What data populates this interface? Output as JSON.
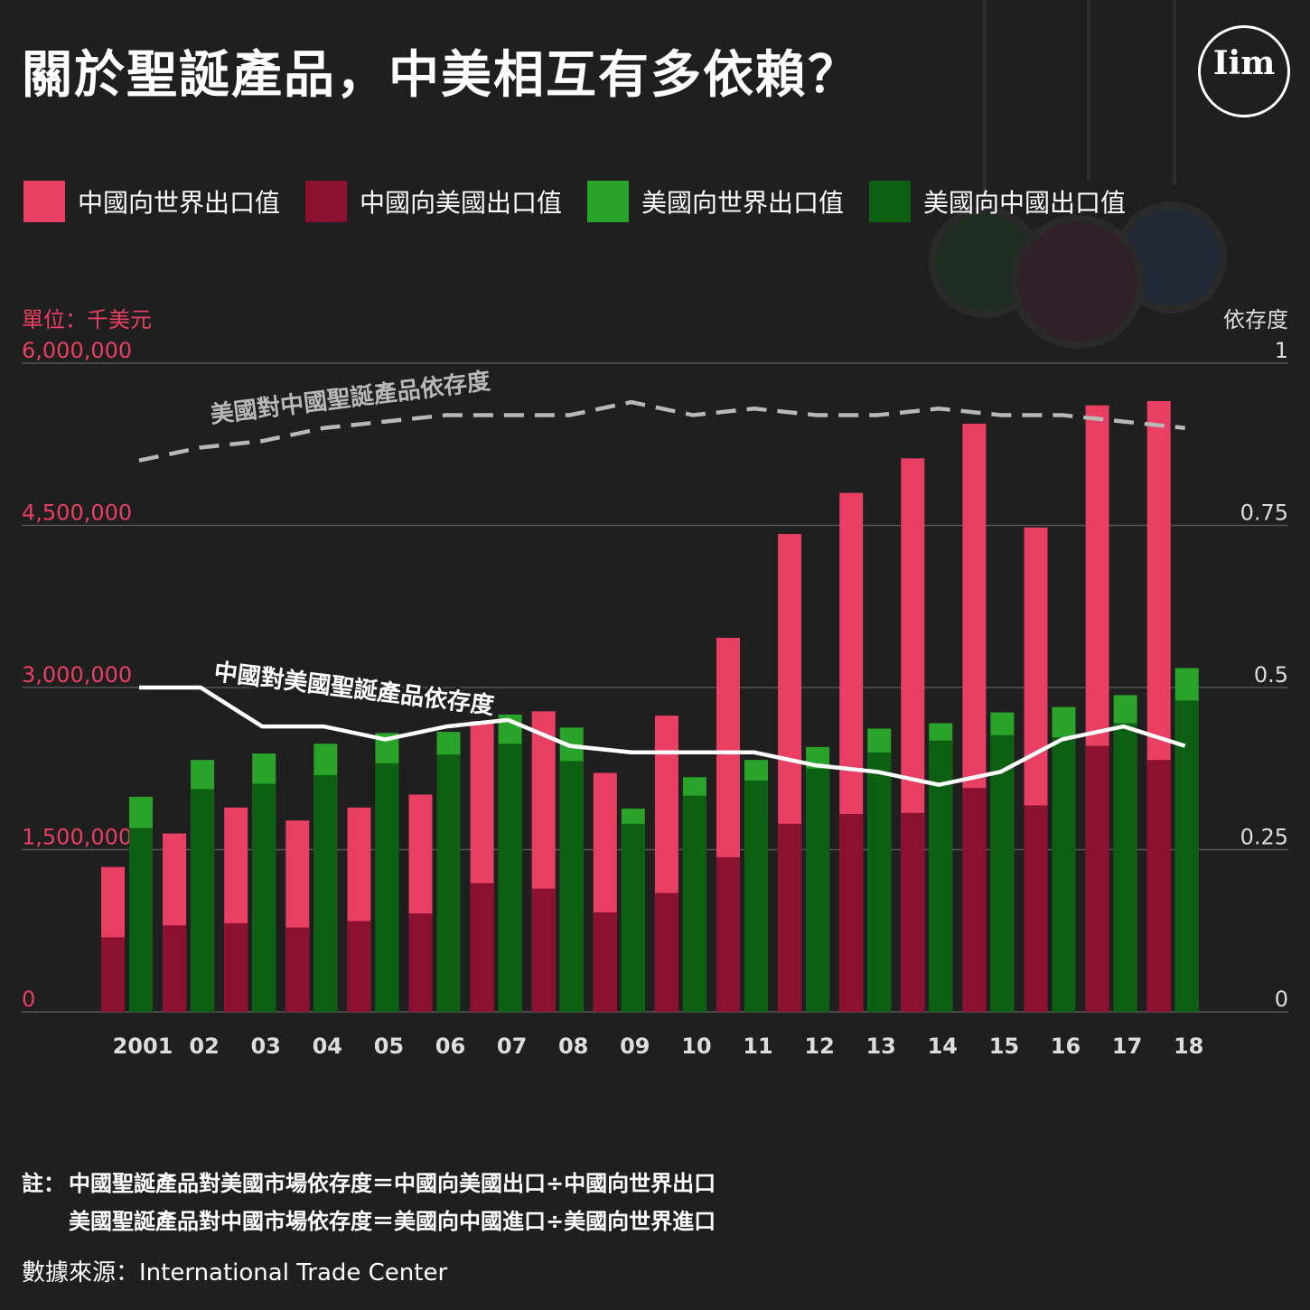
{
  "header": {
    "title": "關於聖誕產品，中美相互有多依賴？",
    "logo_text": "Iim"
  },
  "legend": [
    {
      "label": "中國向世界出口值",
      "color": "#e83f62"
    },
    {
      "label": "中國向美國出口值",
      "color": "#8c1030"
    },
    {
      "label": "美國向世界出口值",
      "color": "#29a329"
    },
    {
      "label": "美國向中國出口值",
      "color": "#0d5f12"
    }
  ],
  "axes": {
    "left_unit": "單位：千美元",
    "right_title": "依存度"
  },
  "chart_data": {
    "type": "bar",
    "categories": [
      "2001",
      "02",
      "03",
      "04",
      "05",
      "06",
      "07",
      "08",
      "09",
      "10",
      "11",
      "12",
      "13",
      "14",
      "15",
      "16",
      "17",
      "18"
    ],
    "y_left": {
      "ylim": [
        0,
        6000000
      ],
      "ticks": [
        0,
        1500000,
        3000000,
        4500000,
        6000000
      ],
      "tick_labels": [
        "0",
        "1,500,000",
        "3,000,000",
        "4,500,000",
        "6,000,000"
      ]
    },
    "y_right": {
      "ylim": [
        0,
        1
      ],
      "ticks": [
        0,
        0.25,
        0.5,
        0.75,
        1
      ],
      "tick_labels": [
        "0",
        "0.25",
        "0.5",
        "0.75",
        "1"
      ]
    },
    "series": [
      {
        "name": "中國向世界出口值",
        "color": "#e83f62",
        "values": [
          1340000,
          1650000,
          1890000,
          1770000,
          1890000,
          2010000,
          2690000,
          2780000,
          2210000,
          2740000,
          3460000,
          4420000,
          4800000,
          5120000,
          5440000,
          4480000,
          5610000,
          5650000
        ]
      },
      {
        "name": "中國向美國出口值",
        "color": "#8c1030",
        "values": [
          690000,
          800000,
          820000,
          780000,
          840000,
          910000,
          1190000,
          1140000,
          920000,
          1100000,
          1430000,
          1740000,
          1830000,
          1840000,
          2070000,
          1910000,
          2460000,
          2330000
        ]
      },
      {
        "name": "美國向世界出口值",
        "color": "#29a329",
        "values": [
          1990000,
          2330000,
          2390000,
          2480000,
          2580000,
          2590000,
          2750000,
          2630000,
          1880000,
          2170000,
          2330000,
          2450000,
          2620000,
          2670000,
          2770000,
          2820000,
          2930000,
          3180000
        ]
      },
      {
        "name": "美國向中國出口值",
        "color": "#0d5f12",
        "values": [
          1700000,
          2060000,
          2110000,
          2190000,
          2300000,
          2380000,
          2480000,
          2320000,
          1740000,
          2000000,
          2140000,
          2250000,
          2400000,
          2510000,
          2560000,
          2540000,
          2670000,
          2880000
        ]
      }
    ],
    "lines": [
      {
        "name": "美國對中國聖誕產品依存度",
        "axis": "right",
        "color": "#b8b8b8",
        "dashed": true,
        "values": [
          0.85,
          0.87,
          0.88,
          0.9,
          0.91,
          0.92,
          0.92,
          0.92,
          0.94,
          0.92,
          0.93,
          0.92,
          0.92,
          0.93,
          0.92,
          0.92,
          0.91,
          0.9
        ]
      },
      {
        "name": "中國對美國聖誕產品依存度",
        "axis": "right",
        "color": "#ffffff",
        "dashed": false,
        "values": [
          0.5,
          0.5,
          0.44,
          0.44,
          0.42,
          0.44,
          0.45,
          0.41,
          0.4,
          0.4,
          0.4,
          0.38,
          0.37,
          0.35,
          0.37,
          0.42,
          0.44,
          0.41
        ]
      }
    ],
    "line_labels": [
      "美國對中國聖誕產品依存度",
      "中國對美國聖誕產品依存度"
    ],
    "grid": true,
    "legend_position": "top-left"
  },
  "footer": {
    "note_prefix": "註：",
    "note_line1": "中國聖誕產品對美國市場依存度＝中國向美國出口÷中國向世界出口",
    "note_line2": "美國聖誕產品對中國市場依存度＝美國向中國進口÷美國向世界進口",
    "source": "數據來源：International Trade Center"
  }
}
